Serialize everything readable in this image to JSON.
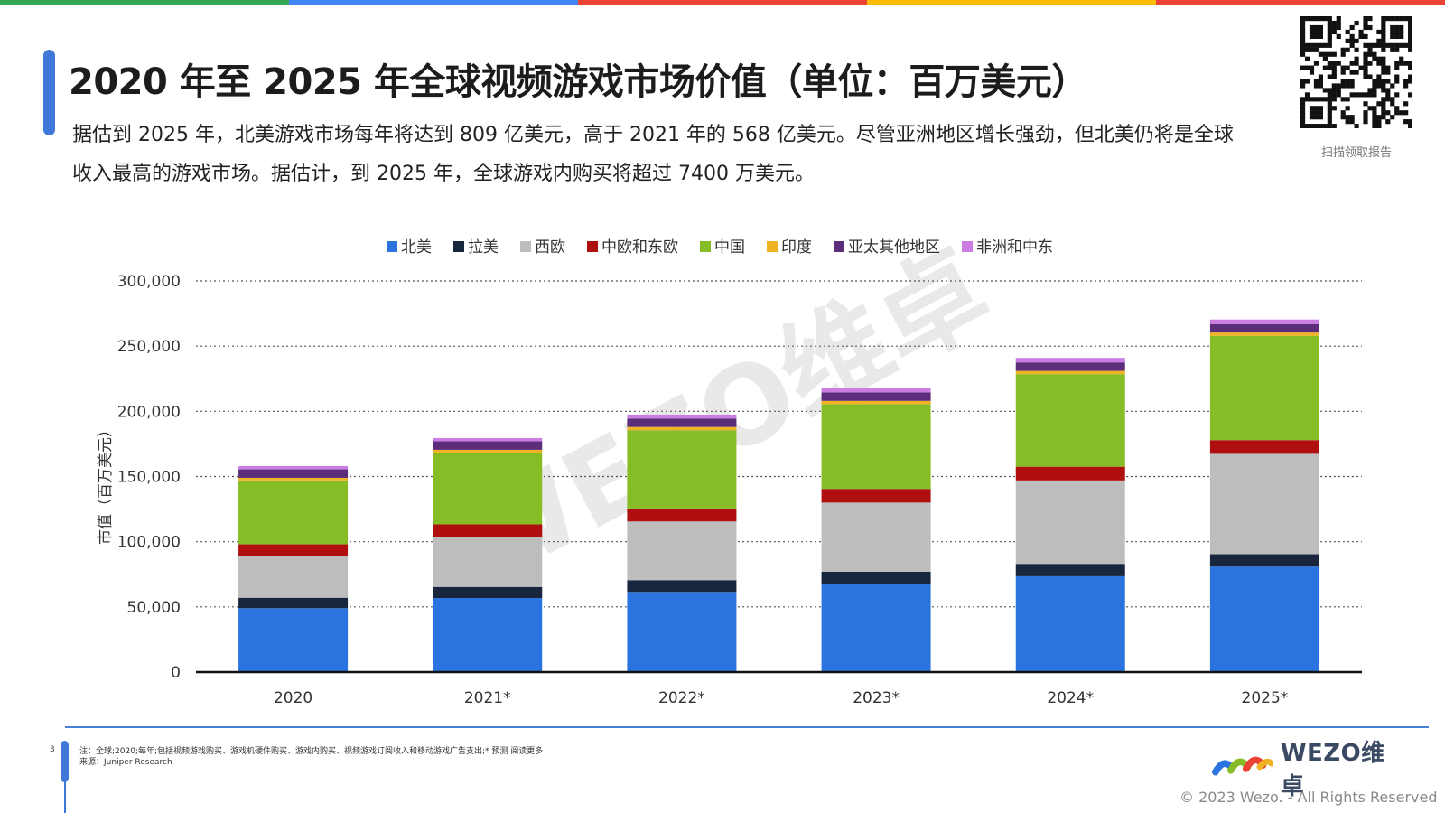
{
  "page": {
    "title": "2020 年至 2025 年全球视频游戏市场价值（单位：百万美元）",
    "intro_line1": "据估到 2025 年，北美游戏市场每年将达到 809 亿美元，高于 2021 年的 568 亿美元。尽管亚洲地区增长强劲，但北美仍将是全球",
    "intro_line2": "收入最高的游戏市场。据估计，到 2025 年，全球游戏内购买将超过 7400 万美元。",
    "qr_caption": "扫描领取报告",
    "watermark": "WEZO维卓",
    "page_number": "3",
    "footnote_line1": "注：全球;2020;每年;包括视频游戏购买、游戏机硬件购买、游戏内购买、视频游戏订阅收入和移动游戏广告支出;* 预测 阅读更多",
    "footnote_line2": "来源：Juniper Research",
    "logo_text": "WEZO维卓",
    "copyright": "© 2023 Wezo. - All Rights Reserved",
    "top_strip_colors": [
      "#34a853",
      "#4285f4",
      "#ea4335",
      "#fbbc05",
      "#ea4335"
    ]
  },
  "chart_data": {
    "type": "bar",
    "stacked": true,
    "ylabel": "市值（百万美元）",
    "xlabel": "",
    "ylim": [
      0,
      300000
    ],
    "yticks": [
      0,
      50000,
      100000,
      150000,
      200000,
      250000,
      300000
    ],
    "ytick_labels": [
      "0",
      "50,000",
      "100,000",
      "150,000",
      "200,000",
      "250,000",
      "300,000"
    ],
    "grid": "horizontal-dotted",
    "legend_position": "top-center",
    "categories": [
      "2020",
      "2021*",
      "2022*",
      "2023*",
      "2024*",
      "2025*"
    ],
    "series": [
      {
        "name": "北美",
        "color": "#2b74df",
        "values": [
          49000,
          56800,
          61500,
          67500,
          73500,
          80900
        ]
      },
      {
        "name": "拉美",
        "color": "#17263d",
        "values": [
          8000,
          8500,
          9000,
          9500,
          9500,
          9500
        ]
      },
      {
        "name": "西欧",
        "color": "#bdbdbd",
        "values": [
          32000,
          38000,
          45000,
          53000,
          64000,
          77000
        ]
      },
      {
        "name": "中欧和东欧",
        "color": "#b00f0f",
        "values": [
          9000,
          10000,
          10000,
          10500,
          10500,
          10500
        ]
      },
      {
        "name": "中国",
        "color": "#86bc25",
        "values": [
          49000,
          55000,
          60000,
          65000,
          71000,
          80000
        ]
      },
      {
        "name": "印度",
        "color": "#f0b323",
        "values": [
          2000,
          2200,
          2500,
          2500,
          2500,
          2500
        ]
      },
      {
        "name": "亚太其他地区",
        "color": "#5c2d7a",
        "values": [
          6500,
          6500,
          6500,
          6500,
          6500,
          6500
        ]
      },
      {
        "name": "非洲和中东",
        "color": "#cc7de3",
        "values": [
          2500,
          2500,
          3000,
          3500,
          3500,
          3500
        ]
      }
    ]
  }
}
